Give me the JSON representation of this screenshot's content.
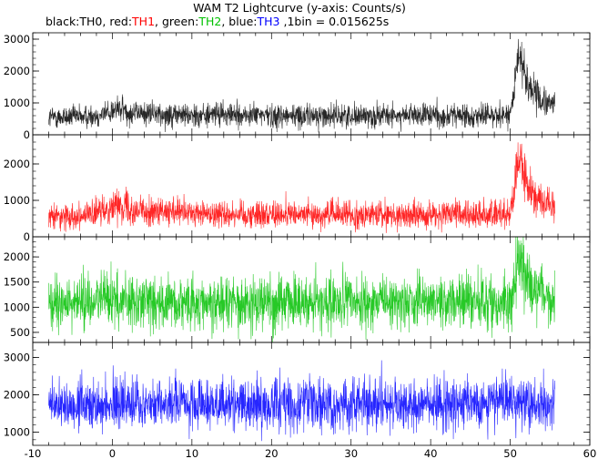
{
  "title": "WAM T2 Lightcurve (y-axis: Counts/s)",
  "subtitle": {
    "segments": [
      {
        "text": "black:",
        "color": "#000000"
      },
      {
        "text": "TH0",
        "color": "#000000"
      },
      {
        "text": ", red:",
        "color": "#000000"
      },
      {
        "text": "TH1",
        "color": "#ff0000"
      },
      {
        "text": ", green:",
        "color": "#000000"
      },
      {
        "text": "TH2",
        "color": "#00c000"
      },
      {
        "text": ", blue:",
        "color": "#000000"
      },
      {
        "text": "TH3",
        "color": "#0000ff"
      },
      {
        "text": " ,1bin = 0.015625s",
        "color": "#000000"
      }
    ]
  },
  "chart_data": {
    "type": "line",
    "title": "WAM T2 Lightcurve (y-axis: Counts/s)",
    "xlim": [
      -10,
      60
    ],
    "xticks": [
      "-10",
      "0",
      "10",
      "20",
      "30",
      "40",
      "50",
      "60"
    ],
    "bin_size": "0.015625s",
    "panels": [
      {
        "name": "TH0",
        "color": "#000000",
        "ylim": [
          0,
          3200
        ],
        "yticks": [
          "0",
          "1000",
          "2000",
          "3000"
        ],
        "x": [
          -8,
          -6,
          -4,
          -2,
          0,
          1,
          2,
          4,
          6,
          8,
          10,
          15,
          20,
          25,
          30,
          35,
          40,
          45,
          48,
          50,
          50.5,
          51,
          51.5,
          52,
          53,
          54,
          55,
          55.6
        ],
        "values": [
          550,
          560,
          570,
          600,
          750,
          820,
          720,
          680,
          650,
          640,
          630,
          620,
          610,
          600,
          600,
          600,
          600,
          610,
          620,
          650,
          1200,
          2600,
          2400,
          1700,
          1300,
          1050,
          950,
          1000
        ],
        "spread": 330
      },
      {
        "name": "TH1",
        "color": "#ff0000",
        "ylim": [
          0,
          2800
        ],
        "yticks": [
          "0",
          "1000",
          "2000"
        ],
        "x": [
          -8,
          -6,
          -4,
          -2,
          0,
          1,
          2,
          4,
          6,
          8,
          10,
          15,
          20,
          25,
          30,
          35,
          40,
          45,
          48,
          50,
          50.5,
          51,
          51.5,
          52,
          53,
          54,
          55,
          55.6
        ],
        "values": [
          550,
          570,
          590,
          620,
          850,
          900,
          780,
          700,
          660,
          650,
          640,
          630,
          620,
          610,
          600,
          600,
          600,
          610,
          620,
          640,
          1200,
          2200,
          2000,
          1450,
          1100,
          950,
          850,
          900
        ],
        "spread": 330
      },
      {
        "name": "TH2",
        "color": "#00c000",
        "ylim": [
          300,
          2400
        ],
        "yticks": [
          "500",
          "1000",
          "1500",
          "2000"
        ],
        "x": [
          -8,
          -4,
          0,
          2,
          10,
          20,
          30,
          40,
          45,
          48,
          50,
          50.5,
          51,
          51.5,
          52,
          53,
          54,
          55,
          55.6
        ],
        "values": [
          1050,
          1070,
          1150,
          1120,
          1100,
          1100,
          1100,
          1100,
          1100,
          1100,
          1120,
          1500,
          1900,
          1800,
          1500,
          1300,
          1200,
          1150,
          1150
        ],
        "spread": 480
      },
      {
        "name": "TH3",
        "color": "#0000ff",
        "ylim": [
          650,
          3400
        ],
        "yticks": [
          "1000",
          "2000",
          "3000"
        ],
        "x": [
          -8,
          0,
          10,
          20,
          30,
          40,
          50,
          51,
          52,
          55.6
        ],
        "values": [
          1750,
          1760,
          1750,
          1750,
          1750,
          1750,
          1760,
          1780,
          1760,
          1750
        ],
        "spread": 600
      }
    ],
    "grid": false,
    "legend": "none"
  }
}
